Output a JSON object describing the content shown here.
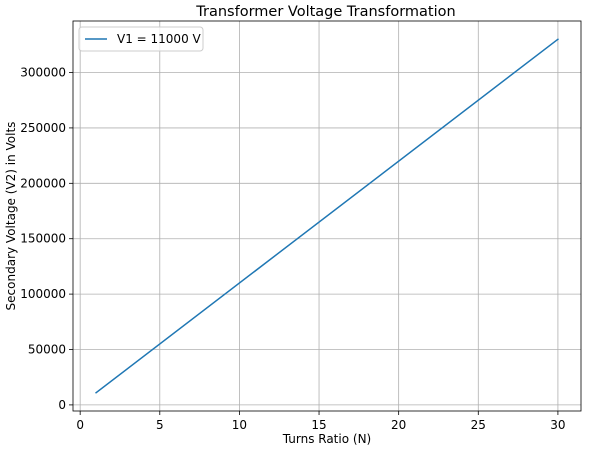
{
  "chart_data": {
    "type": "line",
    "title": "Transformer Voltage Transformation",
    "xlabel": "Turns Ratio (N)",
    "ylabel": "Secondary Voltage (V2) in Volts",
    "xlim": [
      -0.45,
      31.45
    ],
    "ylim": [
      -5500,
      346500
    ],
    "xticks": [
      0,
      5,
      10,
      15,
      20,
      25,
      30
    ],
    "yticks": [
      0,
      50000,
      100000,
      150000,
      200000,
      250000,
      300000
    ],
    "grid": true,
    "legend_position": "top-left",
    "series": [
      {
        "name": "V1 = 11000 V",
        "color": "#1f77b4",
        "x": [
          1,
          30
        ],
        "y": [
          11000,
          330000
        ]
      }
    ]
  }
}
